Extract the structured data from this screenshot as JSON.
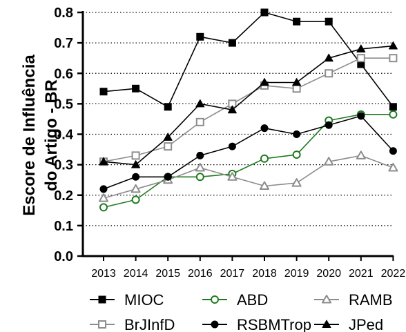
{
  "chart_data": {
    "type": "line",
    "title": "",
    "xlabel": "",
    "ylabel_lines": [
      "Escore de Influência",
      "do Artigo - BR"
    ],
    "x": [
      "2013",
      "2014",
      "2015",
      "2016",
      "2017",
      "2018",
      "2019",
      "2020",
      "2021",
      "2022"
    ],
    "ylim": [
      0.0,
      0.8
    ],
    "yticks": [
      "0.0",
      "0.1",
      "0.2",
      "0.3",
      "0.4",
      "0.5",
      "0.6",
      "0.7",
      "0.8"
    ],
    "grid": "horizontal dotted",
    "legend_position": "bottom",
    "series": [
      {
        "name": "MIOC",
        "marker": "square-filled",
        "color": "#000000",
        "values": [
          0.54,
          0.55,
          0.49,
          0.72,
          0.7,
          0.8,
          0.77,
          0.77,
          0.63,
          0.49
        ]
      },
      {
        "name": "ABD",
        "marker": "circle-open",
        "color": "#1f7a1f",
        "values": [
          0.16,
          0.185,
          0.26,
          0.26,
          0.27,
          0.32,
          0.333,
          0.445,
          0.465,
          0.465
        ]
      },
      {
        "name": "RAMB",
        "marker": "triangle-open",
        "color": "#8c8c8c",
        "values": [
          0.19,
          0.22,
          0.25,
          0.29,
          0.26,
          0.23,
          0.24,
          0.31,
          0.33,
          0.29
        ]
      },
      {
        "name": "BrJInfD",
        "marker": "square-open",
        "color": "#8c8c8c",
        "values": [
          0.31,
          0.33,
          0.36,
          0.44,
          0.5,
          0.56,
          0.55,
          0.6,
          0.65,
          0.65
        ]
      },
      {
        "name": "RSBMTrop",
        "marker": "circle-filled",
        "color": "#000000",
        "values": [
          0.22,
          0.26,
          0.26,
          0.33,
          0.36,
          0.42,
          0.4,
          0.43,
          0.46,
          0.345
        ]
      },
      {
        "name": "JPed",
        "marker": "triangle-filled",
        "color": "#000000",
        "values": [
          0.31,
          0.3,
          0.39,
          0.5,
          0.48,
          0.57,
          0.57,
          0.65,
          0.68,
          0.69
        ]
      }
    ]
  }
}
